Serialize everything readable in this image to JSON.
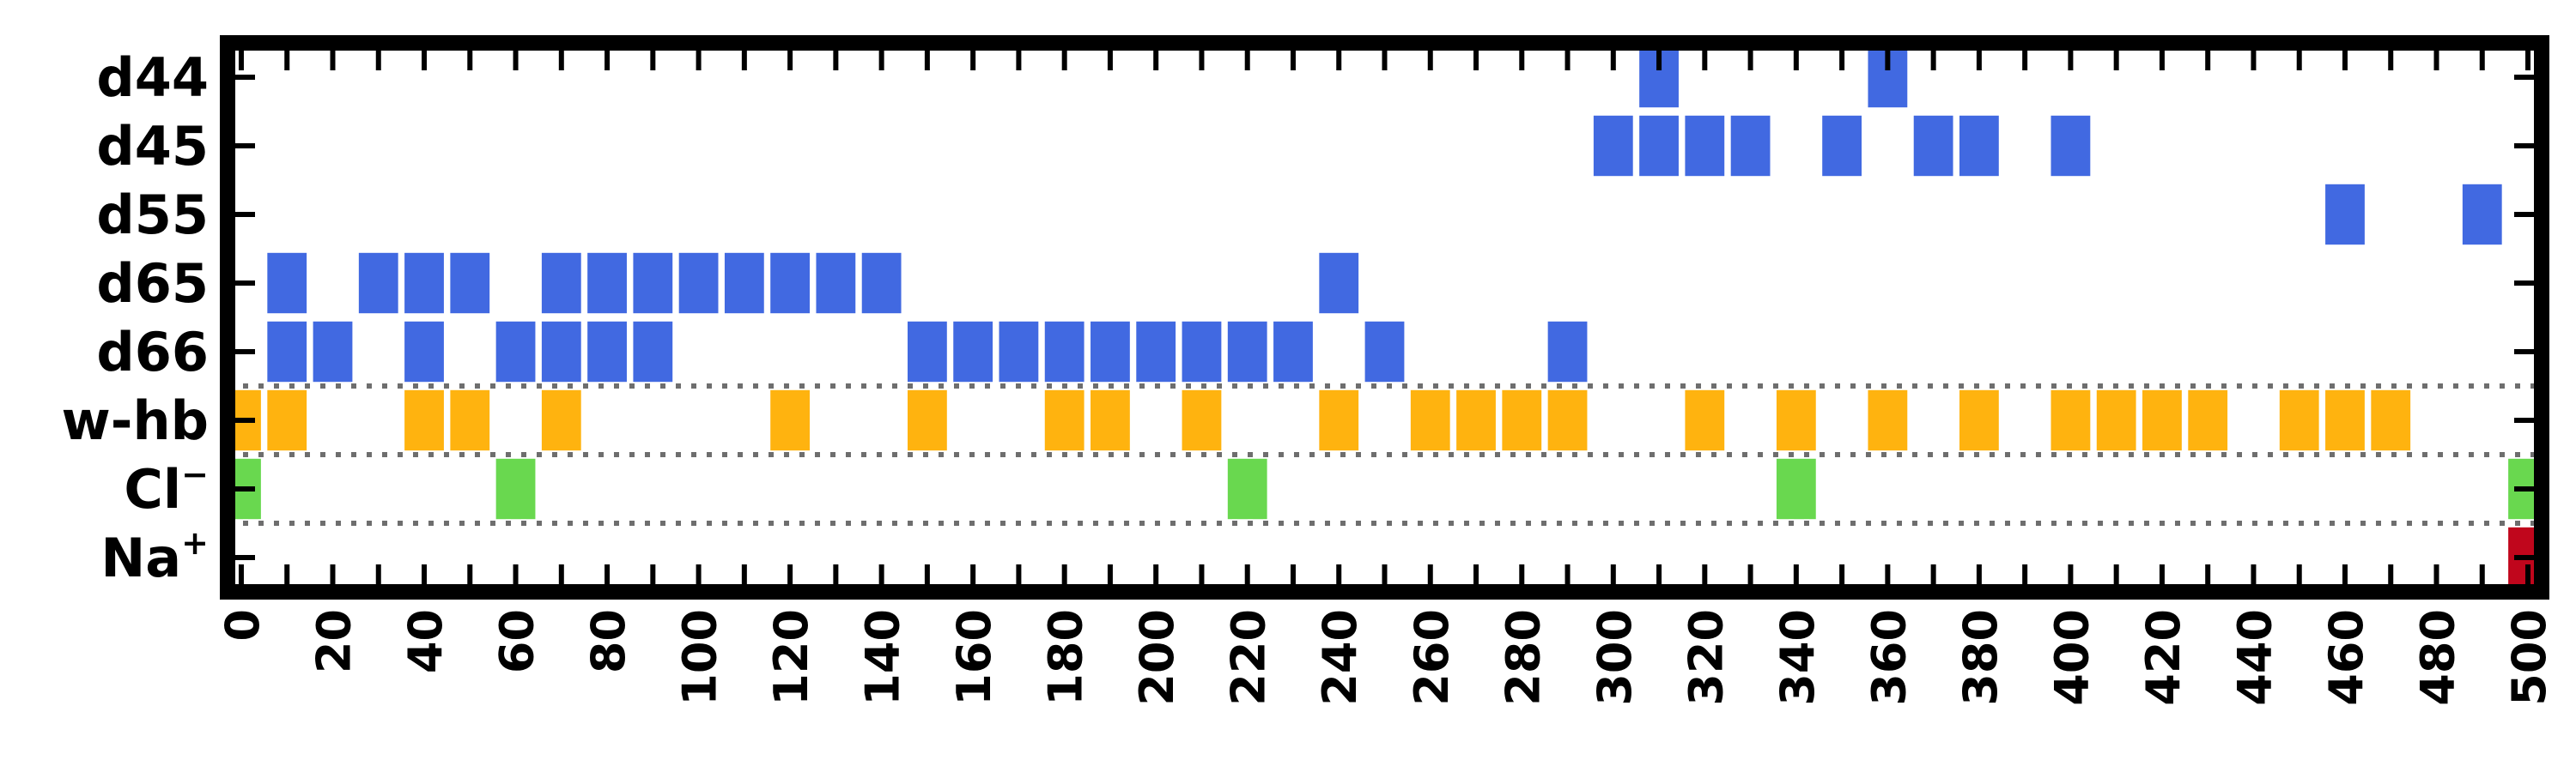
{
  "chart_data": {
    "type": "heatmap",
    "title": "",
    "xlabel": "",
    "ylabel": "",
    "xlim": [
      -3,
      503
    ],
    "grid": false,
    "x_ticks": [
      0,
      20,
      40,
      60,
      80,
      100,
      120,
      140,
      160,
      180,
      200,
      220,
      240,
      260,
      280,
      300,
      320,
      340,
      360,
      380,
      400,
      420,
      440,
      460,
      480,
      500
    ],
    "separators_after_rows": [
      "d66",
      "w-hb",
      "Cl"
    ],
    "rows": [
      {
        "label": "d44",
        "sup": "",
        "color": "#4169e1",
        "x": [
          310,
          360
        ]
      },
      {
        "label": "d45",
        "sup": "",
        "color": "#4169e1",
        "x": [
          300,
          310,
          320,
          330,
          350,
          370,
          380,
          400
        ]
      },
      {
        "label": "d55",
        "sup": "",
        "color": "#4169e1",
        "x": [
          460,
          490
        ]
      },
      {
        "label": "d65",
        "sup": "",
        "color": "#4169e1",
        "x": [
          10,
          30,
          40,
          50,
          70,
          80,
          90,
          100,
          110,
          120,
          130,
          140,
          240
        ]
      },
      {
        "label": "d66",
        "sup": "",
        "color": "#4169e1",
        "x": [
          10,
          20,
          40,
          60,
          70,
          80,
          90,
          150,
          160,
          170,
          180,
          190,
          200,
          210,
          220,
          230,
          250,
          290
        ]
      },
      {
        "label": "w-hb",
        "sup": "",
        "color": "#ffb30f",
        "x": [
          0,
          10,
          40,
          50,
          70,
          120,
          150,
          180,
          190,
          210,
          240,
          260,
          270,
          280,
          290,
          320,
          340,
          360,
          380,
          400,
          410,
          420,
          430,
          450,
          460,
          470
        ]
      },
      {
        "label": "Cl",
        "sup": "−",
        "color": "#69d84f",
        "x": [
          0,
          60,
          220,
          340,
          500
        ]
      },
      {
        "label": "Na",
        "sup": "+",
        "color": "#c0061c",
        "x": [
          500
        ]
      }
    ]
  }
}
